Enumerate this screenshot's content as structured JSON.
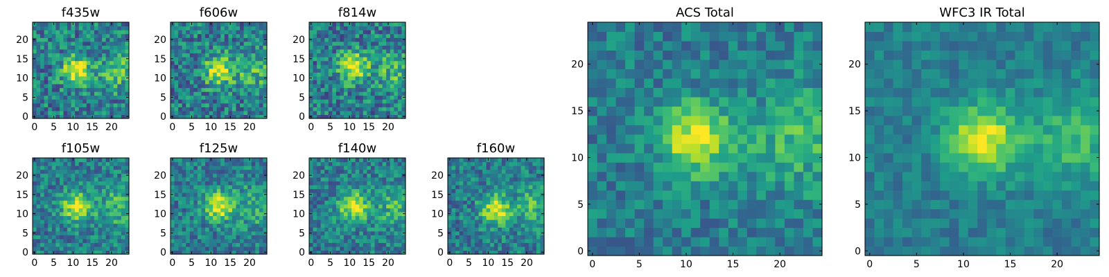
{
  "chart_data": [
    {
      "type": "heatmap",
      "title": "f435w",
      "x_ticks": [
        "0",
        "5",
        "10",
        "15",
        "20"
      ],
      "y_ticks": [
        "0",
        "5",
        "10",
        "15",
        "20"
      ],
      "xlim": [
        -0.5,
        24.5
      ],
      "ylim": [
        -0.5,
        24.5
      ],
      "size": 25,
      "peak": [
        11,
        12
      ],
      "noise": 0.55,
      "seed": 11,
      "colormap": "viridis"
    },
    {
      "type": "heatmap",
      "title": "f606w",
      "x_ticks": [
        "0",
        "5",
        "10",
        "15",
        "20"
      ],
      "y_ticks": [
        "0",
        "5",
        "10",
        "15",
        "20"
      ],
      "xlim": [
        -0.5,
        24.5
      ],
      "ylim": [
        -0.5,
        24.5
      ],
      "size": 25,
      "peak": [
        12,
        12
      ],
      "noise": 0.55,
      "seed": 23,
      "colormap": "viridis"
    },
    {
      "type": "heatmap",
      "title": "f814w",
      "x_ticks": [
        "0",
        "5",
        "10",
        "15",
        "20"
      ],
      "y_ticks": [
        "0",
        "5",
        "10",
        "15",
        "20"
      ],
      "xlim": [
        -0.5,
        24.5
      ],
      "ylim": [
        -0.5,
        24.5
      ],
      "size": 25,
      "peak": [
        11,
        13
      ],
      "noise": 0.55,
      "seed": 37,
      "colormap": "viridis"
    },
    {
      "type": "heatmap",
      "title": "f105w",
      "x_ticks": [
        "0",
        "5",
        "10",
        "15",
        "20"
      ],
      "y_ticks": [
        "0",
        "5",
        "10",
        "15",
        "20"
      ],
      "xlim": [
        -0.5,
        24.5
      ],
      "ylim": [
        -0.5,
        24.5
      ],
      "size": 25,
      "peak": [
        11,
        12
      ],
      "noise": 0.45,
      "seed": 41,
      "colormap": "viridis"
    },
    {
      "type": "heatmap",
      "title": "f125w",
      "x_ticks": [
        "0",
        "5",
        "10",
        "15",
        "20"
      ],
      "y_ticks": [
        "0",
        "5",
        "10",
        "15",
        "20"
      ],
      "xlim": [
        -0.5,
        24.5
      ],
      "ylim": [
        -0.5,
        24.5
      ],
      "size": 25,
      "peak": [
        12,
        12
      ],
      "noise": 0.45,
      "seed": 53,
      "colormap": "viridis"
    },
    {
      "type": "heatmap",
      "title": "f140w",
      "x_ticks": [
        "0",
        "5",
        "10",
        "15",
        "20"
      ],
      "y_ticks": [
        "0",
        "5",
        "10",
        "15",
        "20"
      ],
      "xlim": [
        -0.5,
        24.5
      ],
      "ylim": [
        -0.5,
        24.5
      ],
      "size": 25,
      "peak": [
        11,
        12
      ],
      "noise": 0.45,
      "seed": 67,
      "colormap": "viridis"
    },
    {
      "type": "heatmap",
      "title": "f160w",
      "x_ticks": [
        "0",
        "5",
        "10",
        "15",
        "20"
      ],
      "y_ticks": [
        "0",
        "5",
        "10",
        "15",
        "20"
      ],
      "xlim": [
        -0.5,
        24.5
      ],
      "ylim": [
        -0.5,
        24.5
      ],
      "size": 25,
      "peak": [
        12,
        11
      ],
      "noise": 0.45,
      "seed": 79,
      "colormap": "viridis"
    },
    {
      "type": "heatmap",
      "title": "ACS Total",
      "x_ticks": [
        "0",
        "5",
        "10",
        "15",
        "20"
      ],
      "y_ticks": [
        "0",
        "5",
        "10",
        "15",
        "20"
      ],
      "xlim": [
        -0.5,
        24.5
      ],
      "ylim": [
        -0.5,
        24.5
      ],
      "size": 25,
      "peak": [
        11,
        12
      ],
      "noise": 0.35,
      "seed": 97,
      "colormap": "viridis"
    },
    {
      "type": "heatmap",
      "title": "WFC3 IR Total",
      "x_ticks": [
        "0",
        "5",
        "10",
        "15",
        "20"
      ],
      "y_ticks": [
        "0",
        "5",
        "10",
        "15",
        "20"
      ],
      "xlim": [
        -0.5,
        24.5
      ],
      "ylim": [
        -0.5,
        24.5
      ],
      "size": 25,
      "peak": [
        12,
        12
      ],
      "noise": 0.25,
      "seed": 131,
      "colormap": "viridis"
    }
  ]
}
